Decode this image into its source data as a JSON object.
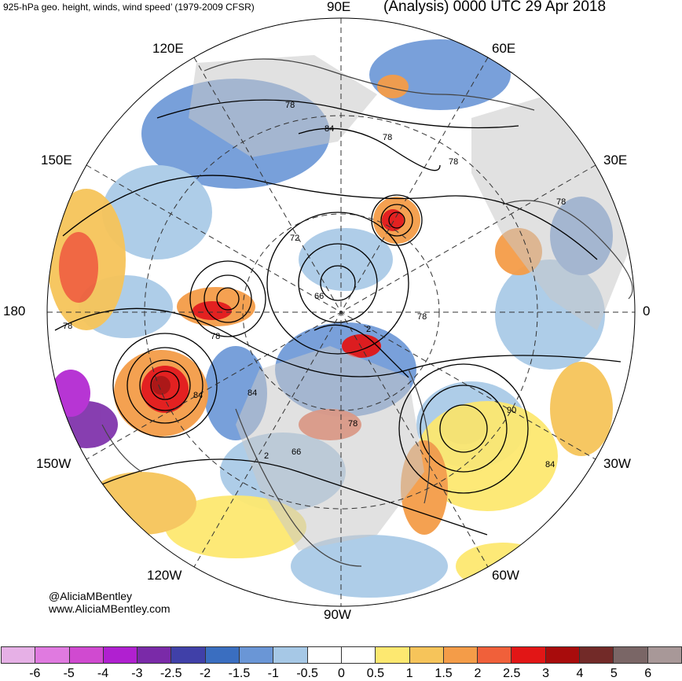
{
  "header": {
    "title": "925-hPa geo. height, winds, wind speed’ (1979-2009 CFSR)",
    "run_label": "(Analysis) 0000 UTC 29 Apr 2018"
  },
  "map": {
    "projection": "north-polar-stereographic",
    "longitude_labels": {
      "lon_90E": "90E",
      "lon_60E": "60E",
      "lon_30E": "30E",
      "lon_0": "0",
      "lon_30W": "30W",
      "lon_60W": "60W",
      "lon_90W": "90W",
      "lon_120W": "120W",
      "lon_150W": "150W",
      "lon_180": "180",
      "lon_150E": "150E",
      "lon_120E": "120E"
    },
    "contour_labels": [
      "78",
      "84",
      "78",
      "78",
      "78",
      "72",
      "66",
      "78",
      "78",
      "84",
      "84",
      "78",
      "90",
      "84",
      "66",
      "2",
      "78",
      "2"
    ],
    "colors": {
      "land": "#c8c8c8",
      "ocean": "#ffffff",
      "contour": "#000000",
      "coastline": "#555555"
    }
  },
  "credit": {
    "handle": "@AliciaMBentley",
    "website": "www.AliciaMBentley.com"
  },
  "colorbar": {
    "colors": [
      "#e6b0e6",
      "#e07ae0",
      "#d04ad0",
      "#b020d0",
      "#7a2aa8",
      "#4040a8",
      "#3a6ec0",
      "#6a96d6",
      "#a6c8e6",
      "#ffffff",
      "#ffffff",
      "#fde870",
      "#f6c45a",
      "#f49c48",
      "#f0603a",
      "#e21616",
      "#a80c0c",
      "#722a28",
      "#7a6666",
      "#a89898"
    ],
    "ticks": [
      "-6",
      "-5",
      "-4",
      "-3",
      "-2.5",
      "-2",
      "-1.5",
      "-1",
      "-0.5",
      "0",
      "0.5",
      "1",
      "1.5",
      "2",
      "2.5",
      "3",
      "4",
      "5",
      "6"
    ]
  }
}
